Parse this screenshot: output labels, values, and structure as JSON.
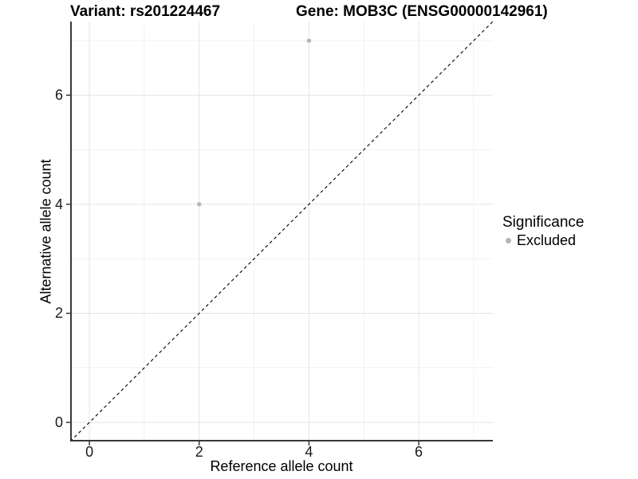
{
  "header": {
    "variant_title": "Variant: rs201224467",
    "gene_title": "Gene: MOB3C (ENSG00000142961)"
  },
  "legend": {
    "title": "Significance",
    "items": [
      {
        "label": "Excluded",
        "color": "#b5b5b5"
      }
    ]
  },
  "style": {
    "point_color": "#b5b5b5",
    "major_grid_color": "#e4e4e4",
    "minor_grid_color": "#f1f1f1",
    "axis_line_color": "#383838",
    "tick_color": "#383838",
    "dashed_line_color": "#000000",
    "background": "#ffffff"
  },
  "chart_data": {
    "type": "scatter",
    "title_left": "Variant: rs201224467",
    "title_right": "Gene: MOB3C (ENSG00000142961)",
    "xlabel": "Reference allele count",
    "ylabel": "Alternative allele count",
    "xlim": [
      -0.35,
      7.35
    ],
    "ylim": [
      -0.35,
      7.35
    ],
    "x_major_ticks": [
      0,
      2,
      4,
      6
    ],
    "y_major_ticks": [
      0,
      2,
      4,
      6
    ],
    "x_minor_ticks": [
      1,
      3,
      5,
      7
    ],
    "y_minor_ticks": [
      1,
      3,
      5,
      7
    ],
    "grid": "major and minor gridlines on white background",
    "legend_position": "right",
    "reference_line": {
      "type": "identity y=x",
      "style": "dashed",
      "color": "#000000"
    },
    "series": [
      {
        "name": "Excluded",
        "color": "#b5b5b5",
        "points": [
          {
            "x": 2,
            "y": 4
          },
          {
            "x": 4,
            "y": 7
          }
        ]
      }
    ]
  }
}
